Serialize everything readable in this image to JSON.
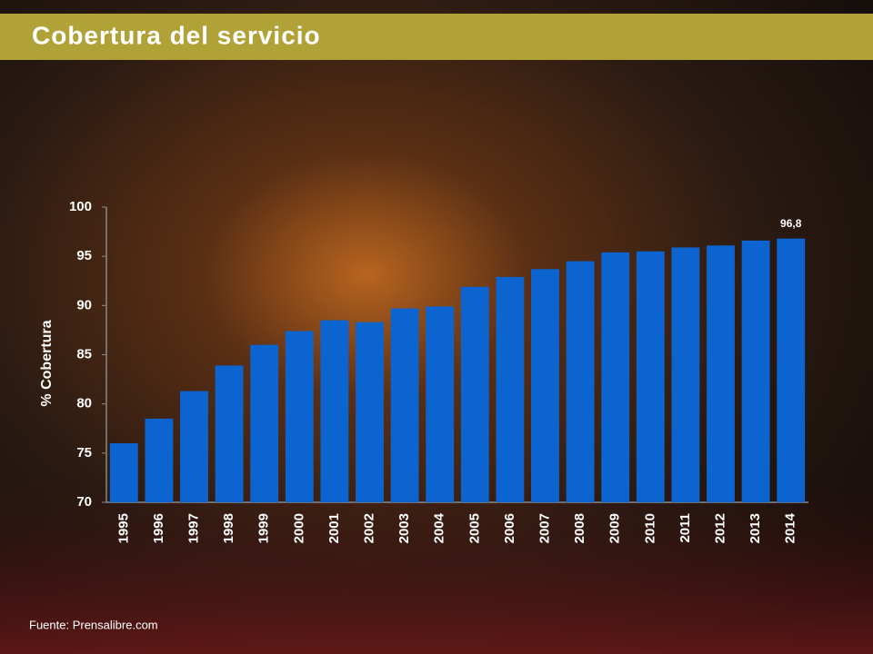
{
  "chart_data": {
    "type": "bar",
    "title": "Cobertura del servicio",
    "y_label": "% Cobertura",
    "source": "Fuente: Prensalibre.com",
    "categories": [
      "1995",
      "1996",
      "1997",
      "1998",
      "1999",
      "2000",
      "2001",
      "2002",
      "2003",
      "2004",
      "2005",
      "2006",
      "2007",
      "2008",
      "2009",
      "2010",
      "2011",
      "2012",
      "2013",
      "2014"
    ],
    "values": [
      76,
      78.5,
      81.3,
      83.9,
      86,
      87.4,
      88.5,
      88.3,
      89.7,
      89.9,
      91.9,
      92.9,
      93.7,
      94.5,
      95.4,
      95.5,
      95.9,
      96.1,
      96.6,
      96.8
    ],
    "value_labels": [
      null,
      null,
      null,
      null,
      null,
      null,
      null,
      null,
      null,
      null,
      null,
      null,
      null,
      null,
      null,
      null,
      null,
      null,
      null,
      "96,8"
    ],
    "color": "#0b64cf",
    "ylim": [
      70,
      100
    ],
    "yticks": [
      70,
      75,
      80,
      85,
      90,
      95,
      100
    ],
    "grid": false
  }
}
